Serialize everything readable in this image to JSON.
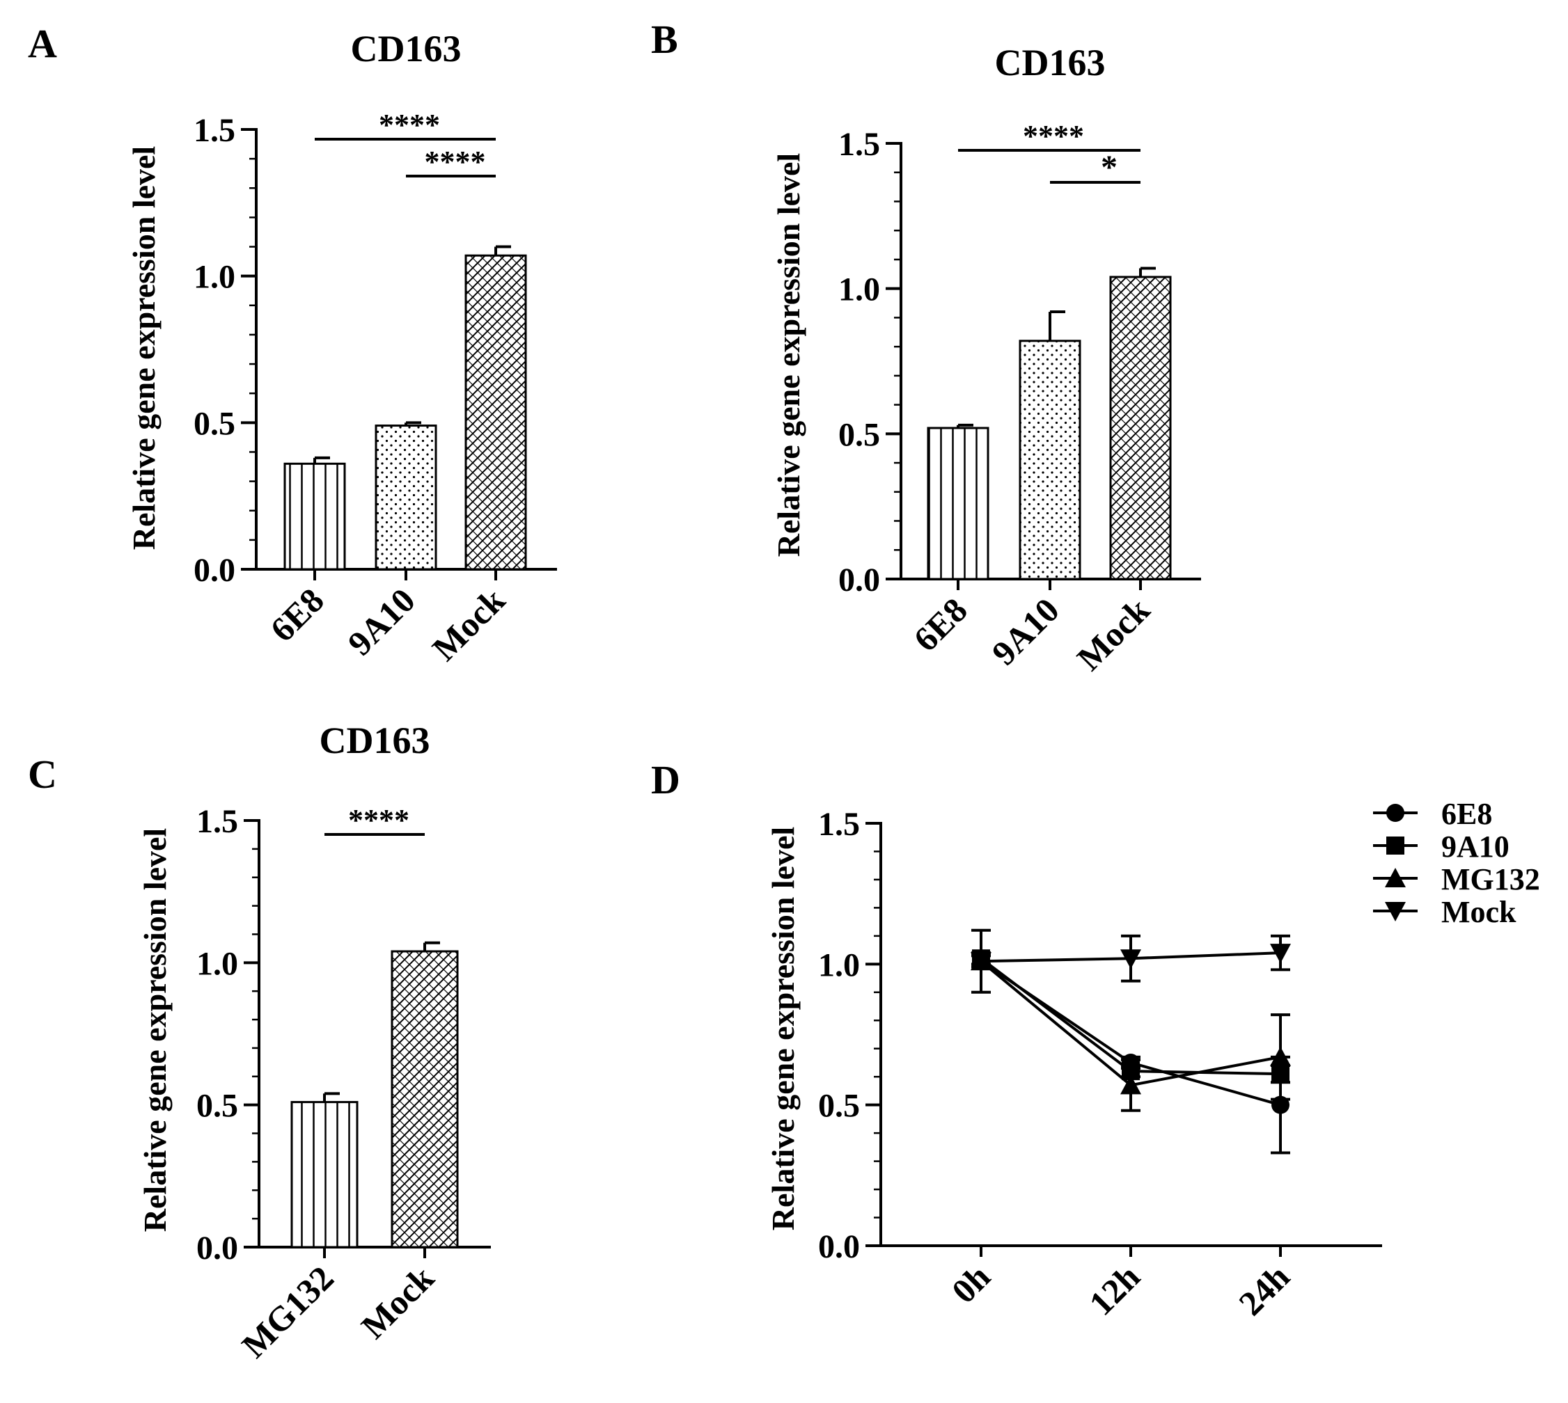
{
  "chart_data": [
    {
      "panel_label": "A",
      "type": "bar",
      "title": "CD163",
      "ylabel": "Relative gene expression level",
      "ylim": [
        0,
        1.5
      ],
      "yticks": [
        "0.0",
        "0.5",
        "1.0",
        "1.5"
      ],
      "categories": [
        "6E8",
        "9A10",
        "Mock"
      ],
      "values": [
        0.36,
        0.49,
        1.07
      ],
      "errors": [
        0.02,
        0.01,
        0.03
      ],
      "patterns": [
        "vlines",
        "dots",
        "brick"
      ],
      "significance": [
        {
          "from": "6E8",
          "to": "Mock",
          "label": "****"
        },
        {
          "from": "9A10",
          "to": "Mock",
          "label": "****"
        }
      ]
    },
    {
      "panel_label": "B",
      "type": "bar",
      "title": "CD163",
      "ylabel": "Relative gene expression level",
      "ylim": [
        0,
        1.5
      ],
      "yticks": [
        "0.0",
        "0.5",
        "1.0",
        "1.5"
      ],
      "categories": [
        "6E8",
        "9A10",
        "Mock"
      ],
      "values": [
        0.52,
        0.82,
        1.04
      ],
      "errors": [
        0.01,
        0.1,
        0.03
      ],
      "patterns": [
        "vlines",
        "dots",
        "brick"
      ],
      "significance": [
        {
          "from": "6E8",
          "to": "Mock",
          "label": "****"
        },
        {
          "from": "9A10",
          "to": "Mock",
          "label": "*"
        }
      ]
    },
    {
      "panel_label": "C",
      "type": "bar",
      "title": "CD163",
      "ylabel": "Relative gene expression level",
      "ylim": [
        0,
        1.5
      ],
      "yticks": [
        "0.0",
        "0.5",
        "1.0",
        "1.5"
      ],
      "categories": [
        "MG132",
        "Mock"
      ],
      "values": [
        0.51,
        1.04
      ],
      "errors": [
        0.03,
        0.03
      ],
      "patterns": [
        "vlines",
        "brick"
      ],
      "significance": [
        {
          "from": "MG132",
          "to": "Mock",
          "label": "****"
        }
      ]
    },
    {
      "panel_label": "D",
      "type": "line",
      "title": "",
      "ylabel": "Relative gene expression level",
      "ylim": [
        0,
        1.5
      ],
      "yticks": [
        "0.0",
        "0.5",
        "1.0",
        "1.5"
      ],
      "categories": [
        "0h",
        "12h",
        "24h"
      ],
      "series": [
        {
          "name": "6E8",
          "marker": "circle",
          "values": [
            1.01,
            0.65,
            0.5
          ],
          "errors": [
            0.02,
            0.02,
            0.17
          ]
        },
        {
          "name": "9A10",
          "marker": "square",
          "values": [
            1.02,
            0.62,
            0.61
          ],
          "errors": [
            0.02,
            0.02,
            0.03
          ]
        },
        {
          "name": "MG132",
          "marker": "triangle-up",
          "values": [
            1.01,
            0.57,
            0.67
          ],
          "errors": [
            0.02,
            0.09,
            0.15
          ]
        },
        {
          "name": "Mock",
          "marker": "triangle-down",
          "values": [
            1.01,
            1.02,
            1.04
          ],
          "errors": [
            0.11,
            0.08,
            0.06
          ]
        }
      ],
      "legend_position": "top-right"
    }
  ]
}
